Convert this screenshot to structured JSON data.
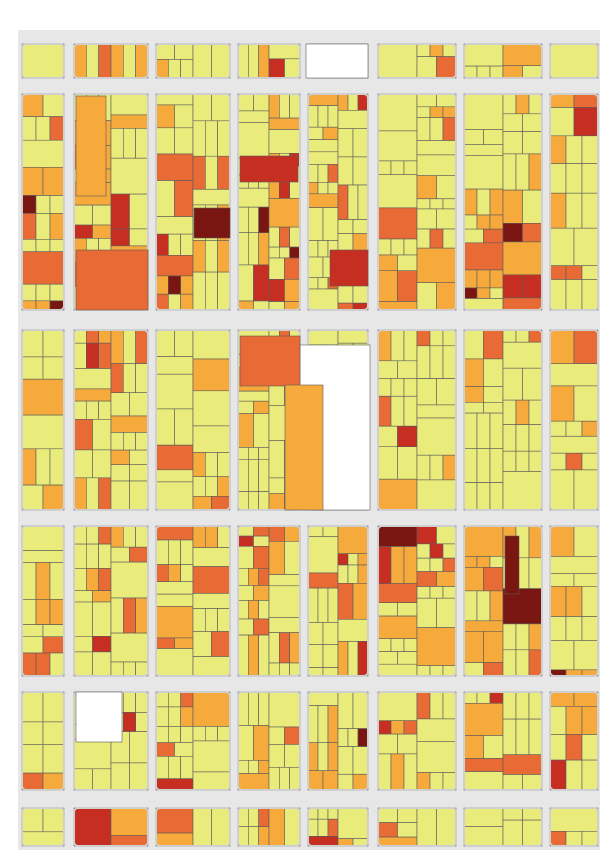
{
  "map": {
    "style": "parcel choropleth",
    "colors": {
      "background": "#ffffff",
      "street": "#e7e7e7",
      "parcel_outline": "#5b5b5b",
      "class_1": "#e9ec7b",
      "class_2": "#f6aa3b",
      "class_3": "#e86a35",
      "class_4": "#c62e22",
      "class_5": "#7a1611"
    },
    "legend": null
  }
}
